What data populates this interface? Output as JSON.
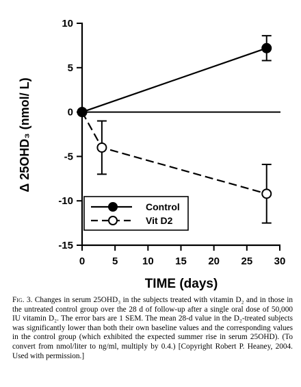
{
  "chart_data": {
    "type": "line",
    "xlabel": "TIME (days)",
    "ylabel": "Δ 25OHD₃ (nmol/ L)",
    "xlim": [
      0,
      30
    ],
    "ylim": [
      -15,
      10
    ],
    "xticks": [
      0,
      5,
      10,
      15,
      20,
      25,
      30
    ],
    "yticks": [
      10,
      5,
      0,
      -5,
      -10,
      -15
    ],
    "zero_line": true,
    "grid": false,
    "legend_position": "bottom-left",
    "series": [
      {
        "name": "Control",
        "marker": "filled-circle",
        "line_style": "solid",
        "color": "#000000",
        "x": [
          0,
          28
        ],
        "y": [
          0,
          7.2
        ],
        "error": [
          0,
          1.4
        ]
      },
      {
        "name": "Vit D2",
        "marker": "open-circle",
        "line_style": "dashed",
        "color": "#000000",
        "x": [
          0,
          3,
          28
        ],
        "y": [
          0,
          -4.0,
          -9.2
        ],
        "error": [
          0,
          3.0,
          3.3
        ]
      }
    ]
  },
  "caption": {
    "label": "Fig. 3.",
    "text": "Changes in serum 25OHD₃ in the subjects treated with vitamin D₂ and in those in the untreated control group over the 28 d of follow-up after a single oral dose of 50,000 IU vitamin D₂. The error bars are 1 SEM. The mean 28-d value in the D₂-treated subjects was significantly lower than both their own baseline values and the corresponding values in the control group (which exhibited the expected summer rise in serum 25OHD). (To convert from nmol/liter to ng/ml, multiply by 0.4.) [Copyright Robert P. Heaney, 2004. Used with permission.]"
  }
}
